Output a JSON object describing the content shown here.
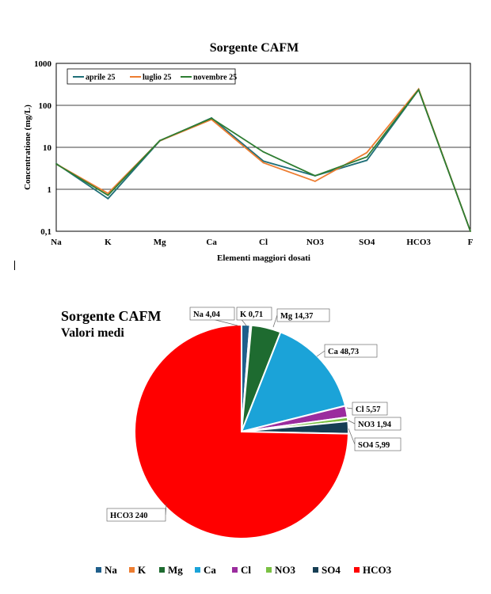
{
  "chart_data": [
    {
      "type": "line",
      "title": "Sorgente CAFM",
      "xlabel": "Elementi maggiori dosati",
      "ylabel": "Concentratione (mg/L)",
      "yscale": "log",
      "ylim": [
        0.1,
        1000
      ],
      "ytick_labels": [
        "0,1",
        "1",
        "10",
        "100",
        "1000"
      ],
      "categories": [
        "Na",
        "K",
        "Mg",
        "Ca",
        "Cl",
        "NO3",
        "SO4",
        "HCO3",
        "F"
      ],
      "grid": "horizontal",
      "legend_position": "top-left",
      "series": [
        {
          "name": "aprile 25",
          "color": "#1f6f78",
          "values": [
            4.1,
            0.6,
            14.2,
            50,
            4.7,
            2.1,
            4.9,
            235,
            0.1
          ]
        },
        {
          "name": "luglio 25",
          "color": "#ed7d31",
          "values": [
            4.0,
            0.8,
            14.3,
            46,
            4.3,
            1.55,
            7.5,
            245,
            0.1
          ]
        },
        {
          "name": "novembre 25",
          "color": "#2e7d32",
          "values": [
            4.0,
            0.72,
            14.5,
            49,
            7.8,
            2.1,
            5.9,
            235,
            0.1
          ]
        }
      ]
    },
    {
      "type": "pie",
      "title": "Sorgente CAFM",
      "subtitle": "Valori medi",
      "categories": [
        "Na",
        "K",
        "Mg",
        "Ca",
        "Cl",
        "NO3",
        "SO4",
        "HCO3"
      ],
      "values": [
        4.04,
        0.71,
        14.37,
        48.73,
        5.57,
        1.94,
        5.99,
        240
      ],
      "value_labels": [
        "4,04",
        "0,71",
        "14,37",
        "48,73",
        "5,57",
        "1,94",
        "5,99",
        "240"
      ],
      "colors": [
        "#1f5f8b",
        "#ed7d31",
        "#1e6b30",
        "#1ba3d8",
        "#9b2c9e",
        "#7ac143",
        "#163e54",
        "#ff0000"
      ],
      "legend_position": "bottom"
    }
  ]
}
